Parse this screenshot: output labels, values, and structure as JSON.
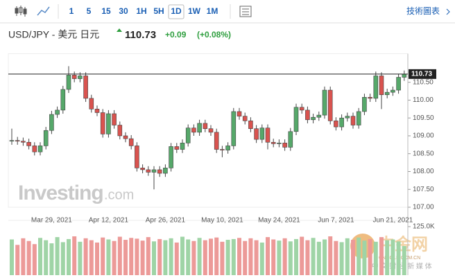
{
  "toolbar": {
    "intervals": [
      "1",
      "5",
      "15",
      "30",
      "1H",
      "5H",
      "1D",
      "1W",
      "1M"
    ],
    "active": "1D",
    "link": "技術圖表"
  },
  "header": {
    "pair": "USD/JPY - 美元 日元",
    "last": "110.73",
    "change": "+0.09",
    "change_pct": "(+0.08%)"
  },
  "watermarks": {
    "brand": "Investing",
    "brand_suffix": ".com",
    "cn_logo": "中金网",
    "cn_domain": "CNGOLD.COM.CN",
    "cn_slogan": "中 文 财 经 新 媒 体"
  },
  "chart_data": {
    "type": "candlestick",
    "up_color": "#56a86a",
    "down_color": "#d9534f",
    "volume_up_color": "#9fd4a6",
    "volume_down_color": "#ec9a98",
    "categories": [
      null,
      null,
      null,
      null,
      null,
      null,
      null,
      "Mar 29, 2021",
      null,
      null,
      null,
      null,
      null,
      null,
      null,
      null,
      null,
      "Apr 12, 2021",
      null,
      null,
      null,
      null,
      null,
      null,
      null,
      null,
      null,
      "Apr 26, 2021",
      null,
      null,
      null,
      null,
      null,
      null,
      null,
      null,
      null,
      "May 10, 2021",
      null,
      null,
      null,
      null,
      null,
      null,
      null,
      null,
      null,
      "May 24, 2021",
      null,
      null,
      null,
      null,
      null,
      null,
      null,
      null,
      null,
      "Jun 7, 2021",
      null,
      null,
      null,
      null,
      null,
      null,
      null,
      null,
      null,
      "Jun 21, 2021",
      null,
      null
    ],
    "open": [
      108.85,
      108.87,
      108.85,
      108.82,
      108.72,
      108.55,
      108.72,
      109.15,
      109.6,
      109.72,
      110.3,
      110.7,
      110.6,
      110.68,
      110.05,
      109.75,
      109.65,
      109.05,
      109.62,
      109.3,
      109.0,
      108.92,
      108.72,
      108.1,
      108.05,
      107.98,
      108.05,
      107.95,
      108.1,
      108.7,
      108.62,
      108.8,
      109.22,
      109.1,
      109.35,
      109.2,
      109.1,
      108.62,
      108.6,
      108.72,
      109.68,
      109.55,
      109.42,
      109.2,
      108.9,
      109.22,
      108.82,
      108.78,
      108.8,
      108.68,
      109.12,
      109.8,
      109.72,
      109.45,
      109.52,
      109.58,
      110.28,
      109.42,
      109.25,
      109.5,
      109.55,
      109.3,
      109.68,
      110.08,
      110.05,
      110.68,
      110.15,
      110.22,
      110.28,
      110.64
    ],
    "high": [
      109.2,
      108.97,
      108.95,
      108.92,
      108.82,
      108.82,
      109.25,
      109.7,
      109.82,
      110.4,
      110.95,
      110.8,
      110.78,
      110.78,
      110.15,
      109.85,
      109.75,
      109.72,
      109.72,
      109.4,
      109.1,
      109.02,
      108.82,
      108.2,
      108.15,
      108.15,
      108.15,
      108.2,
      108.8,
      108.8,
      108.9,
      109.32,
      109.32,
      109.45,
      109.45,
      109.3,
      109.2,
      108.72,
      108.82,
      109.78,
      109.78,
      109.65,
      109.52,
      109.3,
      109.32,
      109.32,
      108.92,
      108.9,
      108.9,
      109.22,
      109.9,
      109.9,
      109.82,
      109.62,
      109.68,
      110.38,
      110.38,
      109.52,
      109.6,
      109.65,
      109.65,
      109.78,
      110.18,
      110.18,
      110.8,
      110.78,
      110.32,
      110.38,
      110.74,
      110.83
    ],
    "low": [
      108.75,
      108.75,
      108.72,
      108.62,
      108.45,
      108.45,
      108.62,
      109.05,
      109.5,
      109.62,
      110.2,
      110.5,
      110.5,
      109.95,
      109.65,
      109.55,
      108.95,
      108.95,
      109.2,
      108.9,
      108.82,
      108.62,
      108.0,
      107.95,
      107.88,
      107.5,
      107.85,
      107.85,
      108.0,
      108.52,
      108.52,
      108.7,
      109.0,
      109.0,
      109.1,
      109.0,
      108.52,
      108.4,
      108.5,
      108.62,
      109.45,
      109.32,
      109.1,
      108.8,
      108.8,
      108.62,
      108.68,
      108.68,
      108.58,
      108.58,
      109.02,
      109.62,
      109.35,
      109.35,
      109.42,
      109.48,
      109.32,
      109.15,
      109.15,
      109.4,
      109.2,
      109.2,
      109.58,
      109.95,
      109.95,
      109.75,
      110.05,
      110.12,
      110.18,
      110.54
    ],
    "close": [
      108.87,
      108.85,
      108.82,
      108.72,
      108.55,
      108.72,
      109.15,
      109.6,
      109.72,
      110.3,
      110.7,
      110.6,
      110.68,
      110.05,
      109.75,
      109.65,
      109.05,
      109.62,
      109.3,
      109.0,
      108.92,
      108.72,
      108.1,
      108.05,
      107.98,
      108.05,
      107.95,
      108.1,
      108.7,
      108.62,
      108.8,
      109.22,
      109.1,
      109.35,
      109.2,
      109.1,
      108.62,
      108.6,
      108.72,
      109.68,
      109.55,
      109.42,
      109.2,
      108.9,
      109.22,
      108.82,
      108.78,
      108.8,
      108.68,
      109.12,
      109.8,
      109.72,
      109.45,
      109.52,
      109.58,
      110.28,
      109.42,
      109.25,
      109.5,
      109.55,
      109.3,
      109.68,
      110.08,
      110.05,
      110.68,
      110.15,
      110.22,
      110.28,
      110.64,
      110.73
    ],
    "volume": [
      92000,
      78000,
      95000,
      88000,
      80000,
      96000,
      90000,
      82000,
      98000,
      85000,
      93000,
      100000,
      86000,
      95000,
      90000,
      84000,
      97000,
      92000,
      88000,
      99000,
      91000,
      96000,
      94000,
      89000,
      98000,
      87000,
      93000,
      90000,
      95000,
      84000,
      99000,
      92000,
      88000,
      96000,
      90000,
      94000,
      97000,
      86000,
      91000,
      93000,
      96000,
      88000,
      95000,
      90000,
      84000,
      98000,
      92000,
      89000,
      95000,
      87000,
      93000,
      99000,
      90000,
      96000,
      86000,
      92000,
      100000,
      88000,
      85000,
      95000,
      91000,
      97000,
      89000,
      93000,
      86000,
      98000,
      90000,
      92000,
      87000,
      75000
    ],
    "ylim": [
      107.0,
      111.3
    ],
    "yticks": [
      {
        "value": 107,
        "label": "107.00"
      },
      {
        "value": 107.5,
        "label": "107.50"
      },
      {
        "value": 108,
        "label": "108.00"
      },
      {
        "value": 108.5,
        "label": "108.50"
      },
      {
        "value": 109,
        "label": "109.00"
      },
      {
        "value": 109.5,
        "label": "109.50"
      },
      {
        "value": 110,
        "label": "110.00"
      },
      {
        "value": 110.5,
        "label": "110.50"
      }
    ],
    "volume_ylim": [
      0,
      125000
    ],
    "volume_yticks": [
      {
        "value": 125000,
        "label": "125.0K"
      }
    ]
  }
}
